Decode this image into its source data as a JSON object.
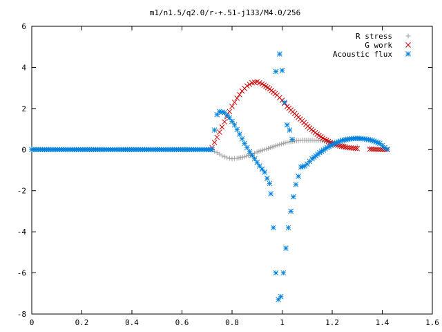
{
  "chart_data": {
    "type": "scatter",
    "title": "m1/n1.5/q2.0/r-+.51-j133/M4.0/256",
    "xlabel": "",
    "ylabel": "",
    "xlim": [
      0,
      1.6
    ],
    "ylim": [
      -8,
      6
    ],
    "x_ticks": [
      "0",
      "0.2",
      "0.4",
      "0.6",
      "0.8",
      "1",
      "1.2",
      "1.4",
      "1.6"
    ],
    "y_ticks": [
      "6",
      "4",
      "2",
      "0",
      "-2",
      "-4",
      "-6",
      "-8"
    ],
    "grid": false,
    "legend_position": "top-right",
    "series": [
      {
        "name": "R stress",
        "marker": "plus",
        "color": "#a0a0a0",
        "points": [
          [
            0.0,
            0
          ],
          [
            0.1,
            0
          ],
          [
            0.2,
            0
          ],
          [
            0.3,
            0
          ],
          [
            0.4,
            0
          ],
          [
            0.5,
            0
          ],
          [
            0.6,
            0
          ],
          [
            0.7,
            0
          ],
          [
            0.72,
            0.0
          ],
          [
            0.74,
            -0.15
          ],
          [
            0.76,
            -0.3
          ],
          [
            0.78,
            -0.4
          ],
          [
            0.8,
            -0.45
          ],
          [
            0.82,
            -0.42
          ],
          [
            0.85,
            -0.35
          ],
          [
            0.88,
            -0.22
          ],
          [
            0.9,
            -0.12
          ],
          [
            0.93,
            0.0
          ],
          [
            0.96,
            0.12
          ],
          [
            0.99,
            0.25
          ],
          [
            1.02,
            0.35
          ],
          [
            1.05,
            0.42
          ],
          [
            1.08,
            0.45
          ],
          [
            1.12,
            0.45
          ],
          [
            1.16,
            0.42
          ],
          [
            1.2,
            0.35
          ],
          [
            1.25,
            0.25
          ],
          [
            1.3,
            0.15
          ],
          [
            1.35,
            0.07
          ],
          [
            1.4,
            0.02
          ],
          [
            1.42,
            0.0
          ]
        ]
      },
      {
        "name": "G work",
        "marker": "cross",
        "color": "#cc0000",
        "points": [
          [
            0.72,
            0.1
          ],
          [
            0.74,
            0.6
          ],
          [
            0.76,
            1.1
          ],
          [
            0.78,
            1.6
          ],
          [
            0.8,
            2.1
          ],
          [
            0.82,
            2.5
          ],
          [
            0.84,
            2.85
          ],
          [
            0.86,
            3.1
          ],
          [
            0.88,
            3.25
          ],
          [
            0.9,
            3.3
          ],
          [
            0.92,
            3.2
          ],
          [
            0.95,
            2.95
          ],
          [
            0.98,
            2.65
          ],
          [
            1.0,
            2.4
          ],
          [
            1.02,
            2.1
          ],
          [
            1.05,
            1.75
          ],
          [
            1.08,
            1.4
          ],
          [
            1.11,
            1.05
          ],
          [
            1.14,
            0.75
          ],
          [
            1.17,
            0.5
          ],
          [
            1.2,
            0.3
          ],
          [
            1.23,
            0.18
          ],
          [
            1.26,
            0.1
          ],
          [
            1.3,
            0.05
          ],
          [
            1.35,
            0.02
          ],
          [
            1.4,
            0.0
          ],
          [
            1.42,
            0.0
          ]
        ]
      },
      {
        "name": "Acoustic flux",
        "marker": "star",
        "color": "#0080dd",
        "points": [
          [
            0.0,
            0
          ],
          [
            0.1,
            0
          ],
          [
            0.2,
            0
          ],
          [
            0.3,
            0
          ],
          [
            0.4,
            0
          ],
          [
            0.5,
            0
          ],
          [
            0.6,
            0
          ],
          [
            0.7,
            0
          ],
          [
            0.72,
            0.0
          ],
          [
            0.73,
            0.95
          ],
          [
            0.74,
            1.7
          ],
          [
            0.75,
            1.85
          ],
          [
            0.77,
            1.8
          ],
          [
            0.79,
            1.55
          ],
          [
            0.81,
            1.2
          ],
          [
            0.83,
            0.75
          ],
          [
            0.85,
            0.3
          ],
          [
            0.87,
            -0.1
          ],
          [
            0.89,
            -0.45
          ],
          [
            0.91,
            -0.8
          ],
          [
            0.93,
            -1.1
          ],
          [
            0.94,
            -1.4
          ],
          [
            0.95,
            -1.65
          ],
          [
            0.955,
            -2.15
          ],
          [
            0.965,
            -3.8
          ],
          [
            0.975,
            -6.0
          ],
          [
            0.985,
            -7.3
          ],
          [
            0.995,
            -7.15
          ],
          [
            1.005,
            -6.0
          ],
          [
            1.015,
            -4.8
          ],
          [
            1.025,
            -3.8
          ],
          [
            1.035,
            -3.0
          ],
          [
            1.045,
            -2.3
          ],
          [
            1.055,
            -1.7
          ],
          [
            1.065,
            -1.3
          ],
          [
            1.075,
            -0.85
          ],
          [
            1.09,
            -0.8
          ],
          [
            1.1,
            -0.7
          ],
          [
            1.12,
            -0.45
          ],
          [
            1.15,
            -0.15
          ],
          [
            1.18,
            0.1
          ],
          [
            1.21,
            0.3
          ],
          [
            1.24,
            0.45
          ],
          [
            1.27,
            0.52
          ],
          [
            1.3,
            0.55
          ],
          [
            1.33,
            0.52
          ],
          [
            1.36,
            0.45
          ],
          [
            1.39,
            0.3
          ],
          [
            1.41,
            0.1
          ],
          [
            1.42,
            0.02
          ],
          [
            0.975,
            3.8
          ],
          [
            0.99,
            4.65
          ],
          [
            1.0,
            3.85
          ],
          [
            1.01,
            2.3
          ],
          [
            1.02,
            1.2
          ],
          [
            1.03,
            0.95
          ],
          [
            1.04,
            0.5
          ]
        ]
      }
    ]
  }
}
